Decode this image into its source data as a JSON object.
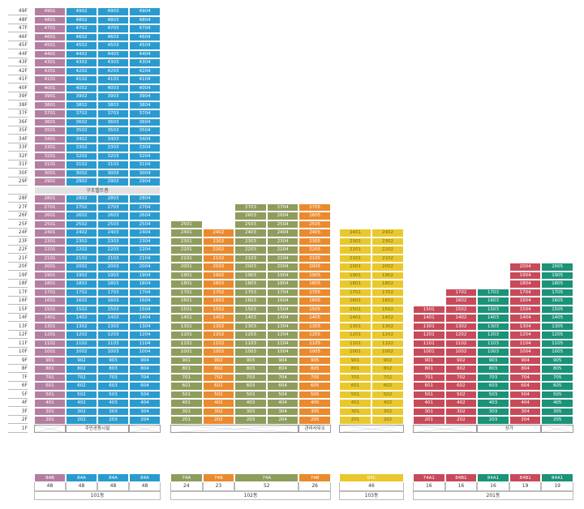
{
  "floors_left": [
    "49F",
    "48F",
    "47F",
    "46F",
    "45F",
    "44F",
    "43F",
    "42F",
    "41F",
    "40F",
    "39F",
    "38F",
    "37F",
    "36F",
    "35F",
    "34F",
    "33F",
    "32F",
    "31F",
    "30F",
    "29F",
    "",
    "28F",
    "27F",
    "26F",
    "25F",
    "24F",
    "23F",
    "22F",
    "21F",
    "20F",
    "19F",
    "18F",
    "17F",
    "16F",
    "15F",
    "14F",
    "13F",
    "12F",
    "11F",
    "10F",
    "9F",
    "8F",
    "7F",
    "6F",
    "5F",
    "4F",
    "3F",
    "2F",
    "1F"
  ],
  "colors": {
    "mauve": "#b47ea0",
    "blue": "#2a9bcf",
    "olive": "#8e9d5e",
    "orange": "#ea8a2e",
    "yellow": "#e9c82d",
    "red": "#c84a5a",
    "teal": "#1a9378"
  },
  "buildings": [
    {
      "id": "b101",
      "name": "101동",
      "columns": [
        {
          "color": "mauve",
          "top": 49,
          "type": "84B",
          "count": "48"
        },
        {
          "color": "blue",
          "top": 49,
          "type": "84A",
          "count": "48"
        },
        {
          "color": "blue",
          "top": 49,
          "type": "84A",
          "count": "48"
        },
        {
          "color": "blue",
          "top": 49,
          "type": "84A",
          "count": "48"
        }
      ],
      "band_label": "구조벨트층",
      "ground_note": "주민공동시설"
    },
    {
      "id": "b102",
      "name": "102동",
      "columns": [
        {
          "color": "olive",
          "top": 25,
          "type": "74A",
          "count": "24"
        },
        {
          "color": "orange",
          "top": 24,
          "type": "74B",
          "count": "23"
        },
        {
          "color": "olive",
          "top": 27,
          "type": "74A",
          "count": "52"
        },
        {
          "color": "olive",
          "top": 27,
          "type": "",
          "count": ""
        },
        {
          "color": "orange",
          "top": 27,
          "type": "74B",
          "count": "26"
        }
      ],
      "ground_note": "관리사무소"
    },
    {
      "id": "b103",
      "name": "103동",
      "columns": [
        {
          "color": "yellow",
          "top": 24,
          "type": "84C",
          "count": "46"
        },
        {
          "color": "yellow",
          "top": 24,
          "type": "",
          "count": ""
        }
      ]
    },
    {
      "id": "b201",
      "name": "201동",
      "columns": [
        {
          "color": "red",
          "top": 15,
          "type": "74A1",
          "count": "16"
        },
        {
          "color": "red",
          "top": 17,
          "type": "84B1",
          "count": "16"
        },
        {
          "color": "teal",
          "top": 17,
          "type": "84A1",
          "count": "16"
        },
        {
          "color": "red",
          "top": 20,
          "type": "84B1",
          "count": "19"
        },
        {
          "color": "teal",
          "top": 20,
          "type": "84A1",
          "count": "19"
        }
      ],
      "ground_note": "상가"
    }
  ]
}
